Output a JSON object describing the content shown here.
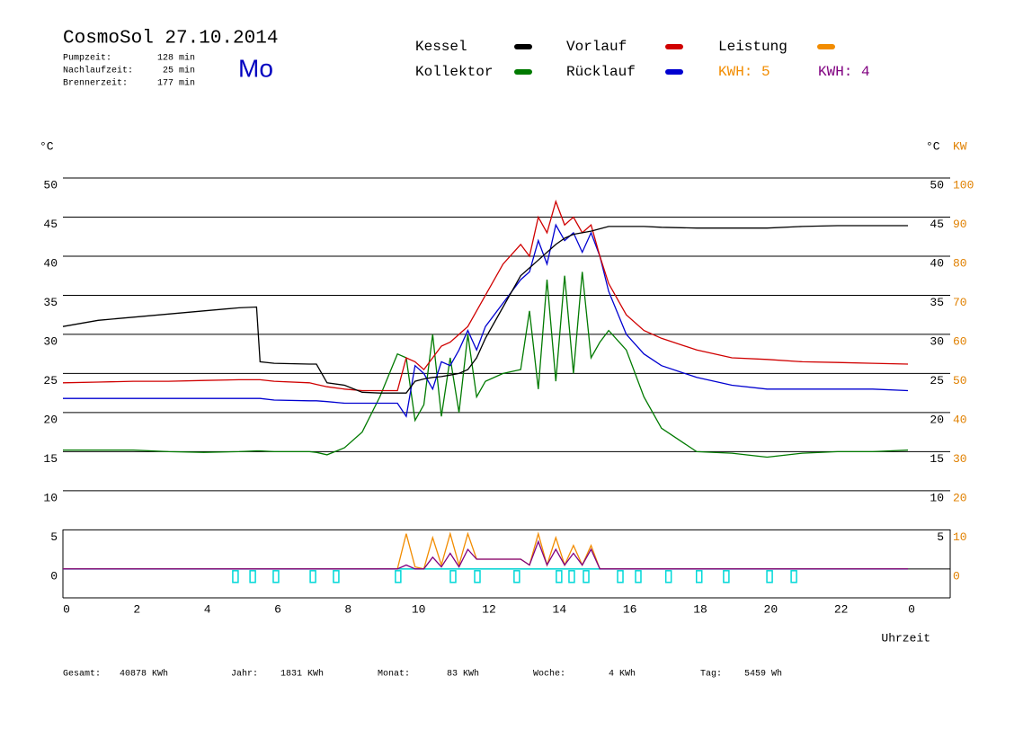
{
  "header": {
    "title": "CosmoSol 27.10.2014",
    "weekday": "Mo",
    "stats": [
      {
        "label": "Pumpzeit:",
        "value": "128 min"
      },
      {
        "label": "Nachlaufzeit:",
        "value": "25 min"
      },
      {
        "label": "Brennerzeit:",
        "value": "177 min"
      }
    ]
  },
  "chart_data": {
    "type": "line",
    "x_label": "Uhrzeit",
    "y_label": "°C",
    "y2_label": "KW",
    "x": [
      0,
      1,
      2,
      3,
      4,
      5,
      5.5,
      5.6,
      6,
      7,
      7.2,
      7.5,
      8,
      8.5,
      9,
      9.5,
      9.75,
      10,
      10.25,
      10.5,
      10.75,
      11,
      11.25,
      11.5,
      11.75,
      12,
      12.5,
      13,
      13.25,
      13.5,
      13.75,
      14,
      14.25,
      14.5,
      14.75,
      15,
      15.25,
      15.5,
      16,
      16.5,
      17,
      18,
      19,
      20,
      21,
      22,
      23,
      24
    ],
    "xlim": [
      0,
      25.2
    ],
    "xticks": [
      0,
      2,
      4,
      6,
      8,
      10,
      12,
      14,
      16,
      18,
      20,
      22,
      {
        "value": 24,
        "label": "0"
      }
    ],
    "ylim": [
      -3.7,
      50
    ],
    "yticks": [
      0,
      5,
      10,
      15,
      20,
      25,
      30,
      35,
      40,
      45,
      50
    ],
    "y2lim": [
      -7.4,
      100
    ],
    "y2ticks": [
      0,
      10,
      20,
      30,
      40,
      50,
      60,
      70,
      80,
      90,
      100
    ],
    "grid": true,
    "series": [
      {
        "name": "Kessel",
        "color": "#000000",
        "values": [
          31,
          31.8,
          32.2,
          32.6,
          33,
          33.4,
          33.5,
          26.5,
          26.3,
          26.2,
          26.2,
          23.8,
          23.5,
          22.6,
          22.5,
          22.5,
          22.5,
          24,
          24.3,
          24.5,
          24.6,
          24.8,
          25,
          25.5,
          27,
          29.5,
          33.5,
          37.5,
          38.5,
          39.5,
          40.5,
          41.5,
          42.3,
          42.8,
          43,
          43.2,
          43.5,
          43.8,
          43.8,
          43.8,
          43.7,
          43.6,
          43.6,
          43.6,
          43.8,
          43.9,
          43.9,
          43.9
        ]
      },
      {
        "name": "Kollektor",
        "color": "#007a00",
        "values": [
          15.2,
          15.2,
          15.2,
          15,
          14.9,
          15,
          15.1,
          15.1,
          15,
          15,
          14.9,
          14.6,
          15.5,
          17.5,
          22,
          27.5,
          27,
          19,
          21,
          30,
          19.5,
          27,
          20,
          30,
          22,
          24,
          25,
          25.5,
          33,
          23,
          37,
          24,
          37.5,
          25,
          38,
          27,
          29,
          30.5,
          28,
          22,
          18,
          15,
          14.8,
          14.3,
          14.8,
          15,
          15,
          15.2
        ]
      },
      {
        "name": "Vorlauf",
        "color": "#d00000",
        "values": [
          23.8,
          23.9,
          24,
          24,
          24.1,
          24.2,
          24.2,
          24.2,
          24,
          23.8,
          23.6,
          23.3,
          23,
          22.8,
          22.8,
          22.8,
          27,
          26.5,
          25.5,
          27,
          28.5,
          29,
          30,
          31,
          33,
          35,
          39,
          41.5,
          40,
          45,
          43,
          47,
          44,
          45,
          43,
          44,
          40,
          36.5,
          32.5,
          30.5,
          29.5,
          28,
          27,
          26.8,
          26.5,
          26.4,
          26.3,
          26.2
        ]
      },
      {
        "name": "Rücklauf",
        "color": "#0000d0",
        "values": [
          21.8,
          21.8,
          21.8,
          21.8,
          21.8,
          21.8,
          21.8,
          21.8,
          21.6,
          21.5,
          21.5,
          21.4,
          21.2,
          21.2,
          21.2,
          21.2,
          19.5,
          26,
          25,
          23,
          26.5,
          26,
          28,
          30.5,
          28,
          31,
          34,
          37,
          38,
          42,
          39,
          44,
          42,
          43,
          40.5,
          43,
          40,
          35.5,
          30,
          27.5,
          26,
          24.5,
          23.5,
          23,
          23,
          23,
          23,
          22.8
        ]
      },
      {
        "name": "Leistung",
        "color": "#f28c00",
        "axis": "y2",
        "values": [
          0,
          0,
          0,
          0,
          0,
          0,
          0,
          0,
          0,
          0,
          0,
          0,
          0,
          0,
          0,
          0,
          9,
          0.5,
          0,
          8,
          1,
          9,
          1,
          9,
          2.5,
          2.5,
          2.5,
          2.5,
          1,
          9,
          1,
          8,
          1,
          6,
          1,
          6,
          0,
          0,
          0,
          0,
          0,
          0,
          0,
          0,
          0,
          0,
          0,
          0
        ]
      },
      {
        "name": "KWH: 4",
        "color": "#800080",
        "axis": "y2",
        "legend_style": "text",
        "values": [
          0,
          0,
          0,
          0,
          0,
          0,
          0,
          0,
          0,
          0,
          0,
          0,
          0,
          0,
          0,
          0,
          1,
          0,
          0,
          3,
          0.5,
          4,
          0.5,
          5,
          2.5,
          2.5,
          2.5,
          2.5,
          1,
          7,
          1,
          5,
          1,
          4,
          1,
          5,
          0,
          0,
          0,
          0,
          0,
          0,
          0,
          0,
          0,
          0,
          0,
          0
        ]
      }
    ],
    "legend_notes": [
      {
        "text": "KWH: 5",
        "color": "#f28c00"
      }
    ],
    "markers": {
      "color": "#00d8d8",
      "x": [
        4.9,
        5.39,
        6.05,
        7.1,
        7.76,
        9.52,
        11.08,
        11.77,
        12.89,
        14.09,
        14.45,
        14.86,
        15.83,
        16.34,
        17.2,
        18.07,
        18.84,
        20.07,
        20.76
      ]
    }
  },
  "footer": [
    {
      "label": "Gesamt:",
      "value": "40878 KWh"
    },
    {
      "label": "Jahr:",
      "value": "1831 KWh"
    },
    {
      "label": "Monat:",
      "value": "83 KWh"
    },
    {
      "label": "Woche:",
      "value": "4 KWh"
    },
    {
      "label": "Tag:",
      "value": "5459 Wh"
    }
  ]
}
